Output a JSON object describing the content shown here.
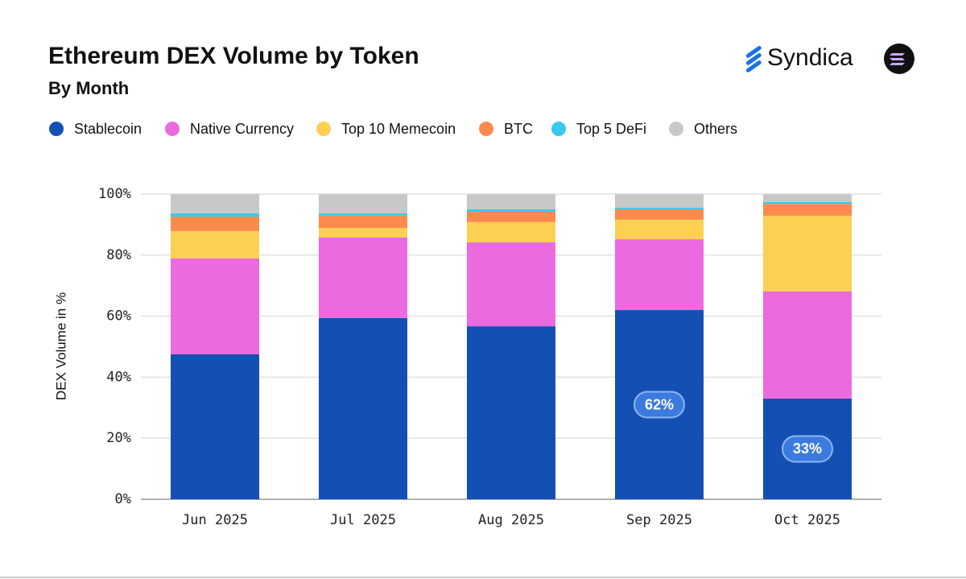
{
  "chart_data": {
    "type": "stacked_bar",
    "title": "Ethereum DEX Volume by Token",
    "subtitle": "By Month",
    "brand": "Syndica",
    "y_label": "DEX Volume in %",
    "categories": [
      "Jun 2025",
      "Jul 2025",
      "Aug 2025",
      "Sep 2025",
      "Oct 2025"
    ],
    "series": [
      {
        "name": "Stablecoin",
        "color": "#1450b4",
        "values": [
          47.5,
          59.4,
          56.7,
          62,
          33
        ],
        "value_labels": [
          null,
          null,
          null,
          "62%",
          "33%"
        ]
      },
      {
        "name": "Native Currency",
        "color": "#ec6ae0",
        "values": [
          31.4,
          26.4,
          27.5,
          23.2,
          35.1
        ]
      },
      {
        "name": "Top 10 Memecoin",
        "color": "#fcd052",
        "values": [
          9,
          3.1,
          6.6,
          6.4,
          24.8
        ]
      },
      {
        "name": "BTC",
        "color": "#fc8a4e",
        "values": [
          4.7,
          4.2,
          3.4,
          3.4,
          3.9
        ]
      },
      {
        "name": "Top 5 DeFi",
        "color": "#38c9ec",
        "values": [
          1.1,
          0.6,
          0.8,
          0.5,
          0.6
        ]
      },
      {
        "name": "Others",
        "color": "#c8c8c8",
        "values": [
          6.3,
          6.3,
          5,
          4.5,
          2.6
        ]
      }
    ],
    "ylim": [
      0,
      100
    ],
    "yticks": [
      {
        "value": 0,
        "label": "0%"
      },
      {
        "value": 20,
        "label": "20%"
      },
      {
        "value": 40,
        "label": "40%"
      },
      {
        "value": 60,
        "label": "60%"
      },
      {
        "value": 80,
        "label": "80%"
      },
      {
        "value": 100,
        "label": "100%"
      }
    ],
    "grid": true
  }
}
